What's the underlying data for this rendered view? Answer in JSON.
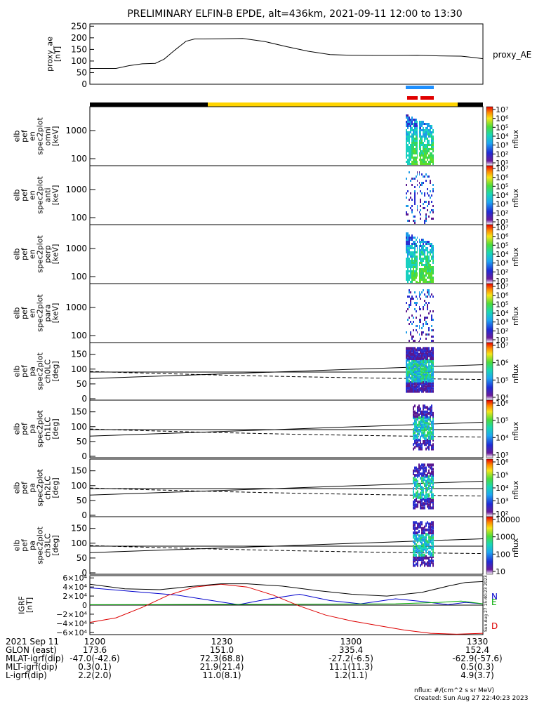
{
  "title": "PRELIMINARY ELFIN-B EPDE, alt=436km, 2021-09-11 12:00 to 13:30",
  "colors": {
    "orbit_dark": "#000000",
    "orbit_sun": "#ffd400",
    "flag_blue": "#1e90ff",
    "flag_red": "#e00000"
  },
  "chart_data": [
    {
      "type": "line",
      "panel": "proxy_ae",
      "ylabel_lines": [
        "proxy_ae",
        "[nT]"
      ],
      "legend": "proxy_AE",
      "y_ticks": [
        "250",
        "200",
        "150",
        "100",
        "50",
        "0"
      ],
      "ylim": [
        0,
        260
      ],
      "xlim": [
        0,
        90
      ],
      "x": [
        0,
        3,
        6,
        9,
        12,
        15,
        17,
        19,
        22,
        24,
        26,
        30,
        35,
        40,
        45,
        50,
        55,
        60,
        65,
        70,
        75,
        80,
        85,
        88,
        90
      ],
      "y": [
        68,
        68,
        68,
        80,
        88,
        90,
        108,
        140,
        185,
        195,
        195,
        196,
        197,
        184,
        162,
        142,
        128,
        125,
        124,
        124,
        125,
        122,
        121,
        115,
        110
      ]
    },
    {
      "type": "heatmap",
      "panel": "spectrogram",
      "panels": [
        {
          "label_lines": [
            "elb",
            "pef",
            "en",
            "spec2plot",
            "omni",
            "[keV]"
          ],
          "y_ticks": [
            "1000",
            "100"
          ],
          "colorbar_ticks": [
            "10⁷",
            "10⁶",
            "10⁵",
            "10⁴",
            "10³",
            "10²",
            "10¹"
          ],
          "cbar_label": "nflux"
        },
        {
          "label_lines": [
            "elb",
            "pef",
            "en",
            "spec2plot",
            "anti",
            "[keV]"
          ],
          "y_ticks": [
            "1000",
            "100"
          ],
          "colorbar_ticks": [
            "10⁷",
            "10⁶",
            "10⁵",
            "10⁴",
            "10³",
            "10²",
            "10¹"
          ],
          "cbar_label": "nflux"
        },
        {
          "label_lines": [
            "elb",
            "pef",
            "en",
            "spec2plot",
            "perp",
            "[keV]"
          ],
          "y_ticks": [
            "1000",
            "100"
          ],
          "colorbar_ticks": [
            "10⁷",
            "10⁶",
            "10⁵",
            "10⁴",
            "10³",
            "10²",
            "10¹"
          ],
          "cbar_label": "nflux"
        },
        {
          "label_lines": [
            "elb",
            "pef",
            "en",
            "spec2plot",
            "para",
            "[keV]"
          ],
          "y_ticks": [
            "1000",
            "100"
          ],
          "colorbar_ticks": [
            "10⁷",
            "10⁶",
            "10⁵",
            "10⁴",
            "10³",
            "10²",
            "10¹"
          ],
          "cbar_label": "nflux"
        }
      ]
    },
    {
      "type": "heatmap",
      "panel": "pitch_angle",
      "panels": [
        {
          "label_lines": [
            "elb",
            "pef",
            "pa",
            "spec2plot",
            "ch0LC",
            "[deg]"
          ],
          "y_ticks": [
            "150",
            "100",
            "50",
            "0"
          ],
          "colorbar_ticks": [
            "10⁷",
            "10⁶",
            "10⁵",
            "10⁴"
          ],
          "cbar_label": "nflux"
        },
        {
          "label_lines": [
            "elb",
            "pef",
            "pa",
            "spec2plot",
            "ch1LC",
            "[deg]"
          ],
          "y_ticks": [
            "150",
            "100",
            "50",
            "0"
          ],
          "colorbar_ticks": [
            "10⁶",
            "10⁵",
            "10⁴",
            "10³"
          ],
          "cbar_label": "nflux"
        },
        {
          "label_lines": [
            "elb",
            "pef",
            "pa",
            "spec2plot",
            "ch2LC",
            "[deg]"
          ],
          "y_ticks": [
            "150",
            "100",
            "50",
            "0"
          ],
          "colorbar_ticks": [
            "10⁶",
            "10⁵",
            "10⁴",
            "10³",
            "10²"
          ],
          "cbar_label": "nflux"
        },
        {
          "label_lines": [
            "elb",
            "pef",
            "pa",
            "spec2plot",
            "ch3LC",
            "[deg]"
          ],
          "y_ticks": [
            "150",
            "100",
            "50",
            "0"
          ],
          "colorbar_ticks": [
            "10000",
            "1000",
            "100",
            "10"
          ],
          "cbar_label": "nflux"
        }
      ]
    },
    {
      "type": "line",
      "panel": "igrf",
      "ylabel_lines": [
        "IGRF",
        "[nT]"
      ],
      "y_ticks": [
        "6×10⁴",
        "4×10⁴",
        "2×10⁴",
        "0",
        "−2×10⁴",
        "−4×10⁴",
        "−6×10⁴"
      ],
      "ylim": [
        -65000,
        65000
      ],
      "xlim": [
        0,
        90
      ],
      "series": [
        {
          "name": "N",
          "color": "#0000cc",
          "x": [
            0,
            10,
            20,
            28,
            34,
            40,
            48,
            55,
            62,
            70,
            76,
            82,
            86,
            90
          ],
          "y": [
            38000,
            30000,
            22000,
            10000,
            1000,
            12000,
            24000,
            10000,
            3000,
            14000,
            8000,
            1000,
            6000,
            3000
          ]
        },
        {
          "name": "E",
          "color": "#00aa00",
          "x": [
            0,
            15,
            30,
            45,
            60,
            70,
            80,
            85,
            90
          ],
          "y": [
            1000,
            1200,
            1500,
            1800,
            2500,
            3000,
            6000,
            9000,
            3000
          ]
        },
        {
          "name": "D",
          "color": "#dd0000",
          "x": [
            0,
            6,
            12,
            18,
            24,
            30,
            36,
            42,
            48,
            54,
            60,
            66,
            72,
            78,
            84,
            90
          ],
          "y": [
            -38000,
            -28000,
            -5000,
            22000,
            40000,
            46000,
            40000,
            22000,
            -2000,
            -22000,
            -35000,
            -45000,
            -55000,
            -62000,
            -64000,
            -62000
          ]
        },
        {
          "name": "",
          "color": "#000000",
          "x": [
            0,
            8,
            16,
            24,
            30,
            36,
            44,
            52,
            60,
            68,
            76,
            82,
            86,
            90
          ],
          "y": [
            46000,
            36000,
            34000,
            42000,
            47000,
            47000,
            42000,
            32000,
            24000,
            20000,
            28000,
            42000,
            50000,
            52000
          ]
        }
      ],
      "legend_letters": [
        "N",
        "E",
        "D"
      ],
      "side_text": "Sun Aug 27 15:40:23 2023"
    }
  ],
  "xaxis": {
    "rows": [
      {
        "label": "2021 Sep 11",
        "values": [
          "1200",
          "1230",
          "1300",
          "1330"
        ]
      },
      {
        "label": "GLON (east)",
        "values": [
          "173.6",
          "151.0",
          "335.4",
          "152.4"
        ]
      },
      {
        "label": "MLAT-igrf(dip)",
        "values": [
          "-47.0(-42.6)",
          "72.3(68.8)",
          "-27.2(-6.5)",
          "-62.9(-57.6)"
        ]
      },
      {
        "label": "MLT-igrf(dip)",
        "values": [
          "0.3(0.1)",
          "21.9(21.4)",
          "11.1(11.3)",
          "0.5(0.3)"
        ]
      },
      {
        "label": "L-igrf(dip)",
        "values": [
          "2.2(2.0)",
          "11.0(8.1)",
          "1.2(1.1)",
          "4.9(3.7)"
        ]
      }
    ]
  },
  "footer": {
    "units": "nflux: #/(cm^2 s sr MeV)",
    "created": "Created: Sun Aug 27 22:40:23 2023"
  }
}
